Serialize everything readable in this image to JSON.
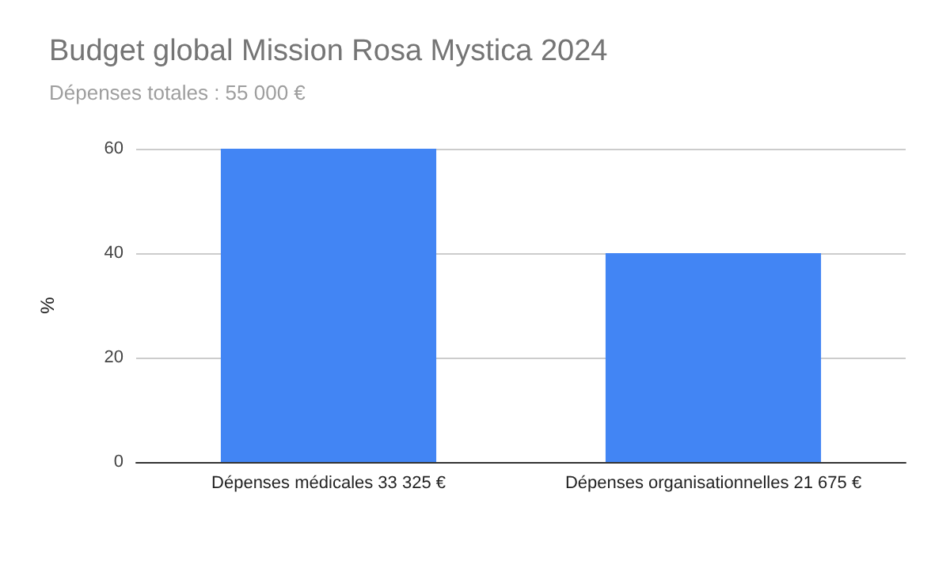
{
  "chart_data": {
    "type": "bar",
    "title": "Budget global Mission Rosa Mystica 2024",
    "subtitle": "Dépenses totales : 55 000 €",
    "ylabel": "%",
    "categories": [
      "Dépenses médicales 33 325 €",
      "Dépenses organisationnelles 21 675 €"
    ],
    "values": [
      60,
      40
    ],
    "color": "#4285f4",
    "ylim": [
      0,
      60
    ],
    "yticks": [
      0,
      20,
      40,
      60
    ],
    "grid": "y"
  }
}
